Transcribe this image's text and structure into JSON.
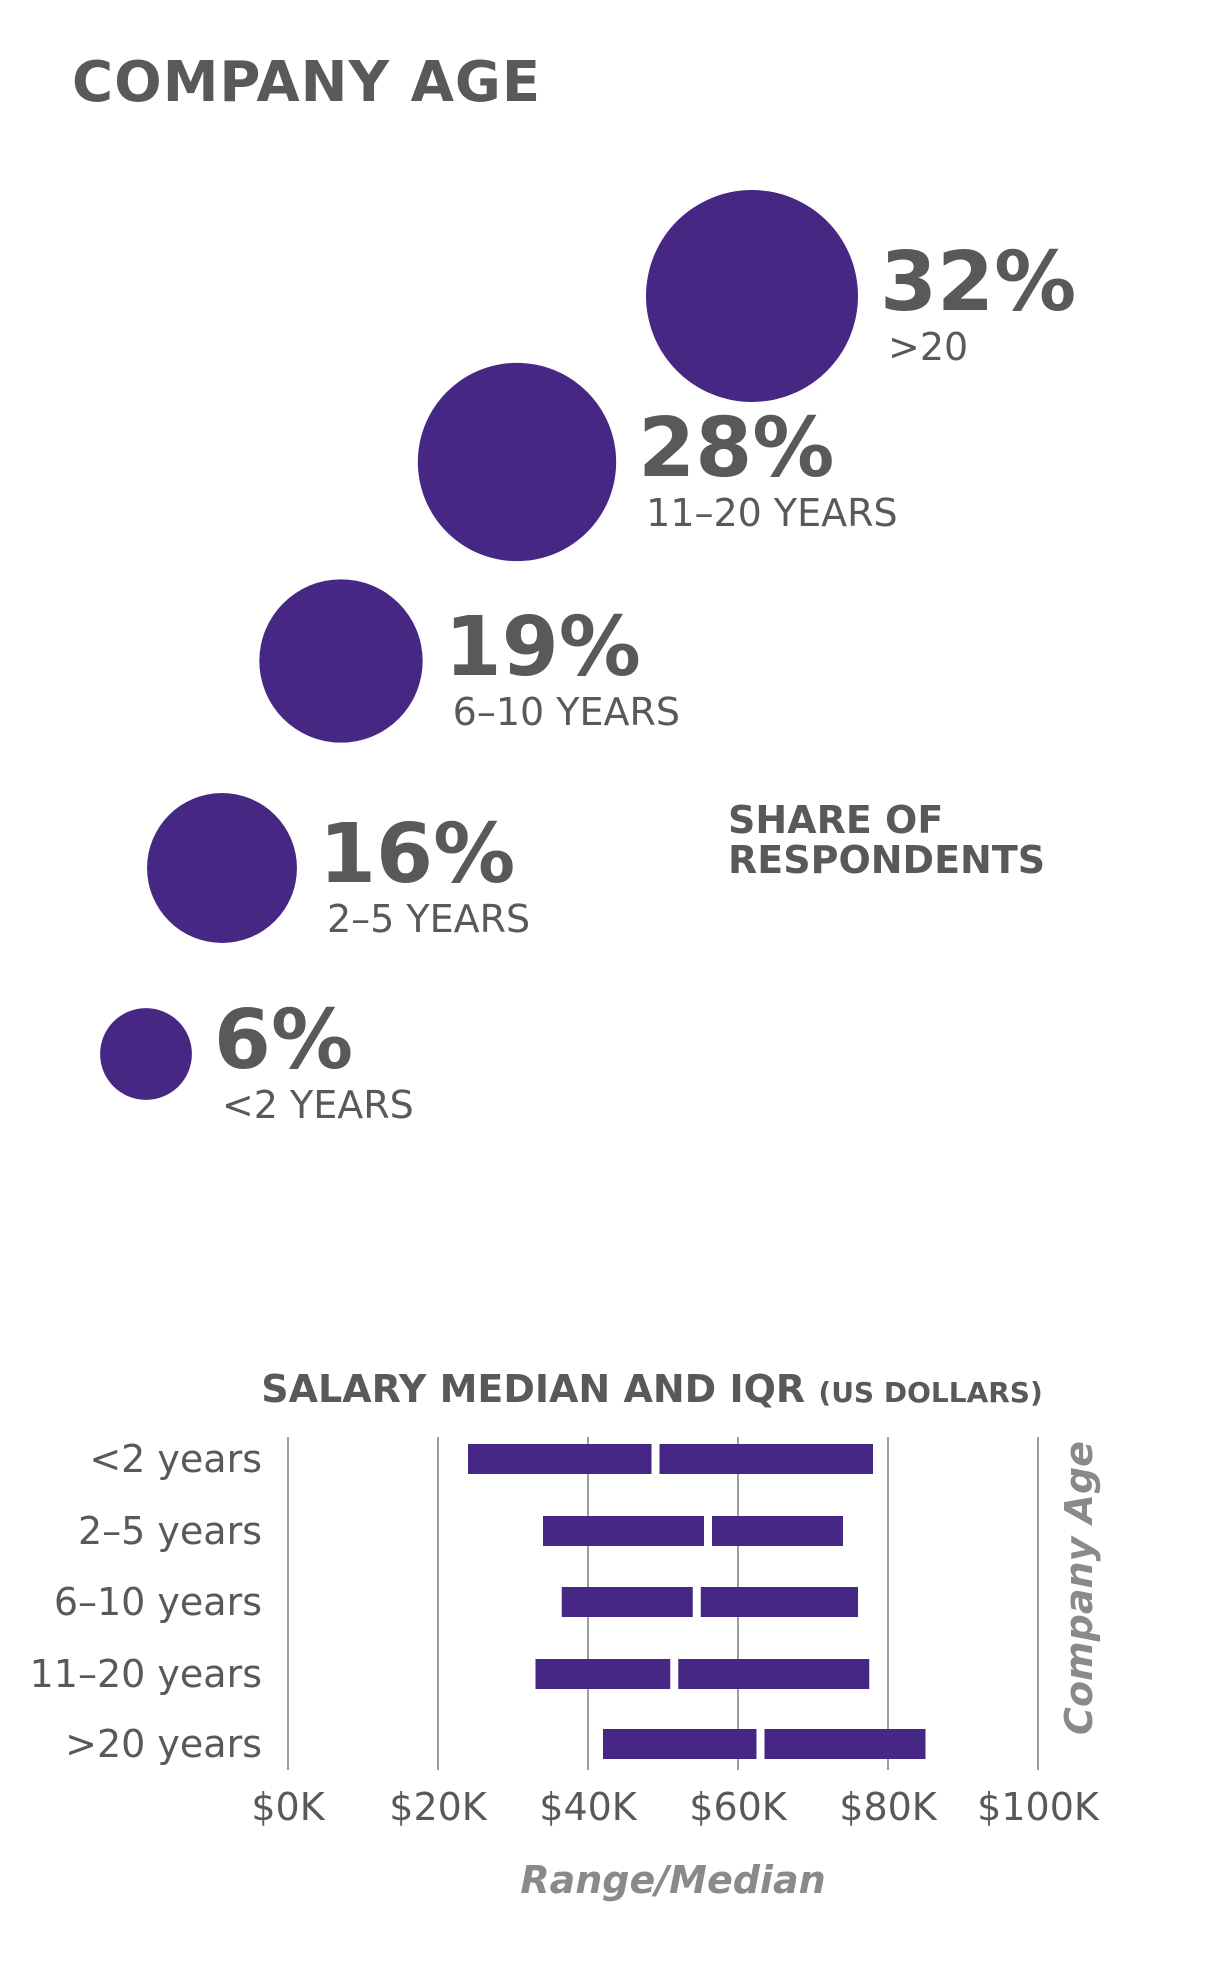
{
  "title": "COMPANY AGE",
  "share_label": [
    "SHARE OF",
    "RESPONDENTS"
  ],
  "colors": {
    "accent": "#462884",
    "text": "#58595b",
    "grid": "#9e9e9e"
  },
  "chart_data": [
    {
      "type": "bubble",
      "categories": [
        ">20",
        "11–20 YEARS",
        "6–10 YEARS",
        "2–5 YEARS",
        "<2 YEARS"
      ],
      "values": [
        32,
        28,
        19,
        16,
        6
      ],
      "value_labels": [
        "32%",
        "28%",
        "19%",
        "16%",
        "6%"
      ],
      "title": "",
      "annotation": "SHARE OF RESPONDENTS"
    },
    {
      "type": "range-bar",
      "title": "SALARY MEDIAN AND IQR",
      "subtitle": "(US DOLLARS)",
      "categories": [
        "<2 years",
        "2–5 years",
        "6–10 years",
        "11–20 years",
        ">20 years"
      ],
      "low": [
        24000,
        34000,
        36500,
        33000,
        42000
      ],
      "median": [
        49000,
        56000,
        54500,
        51500,
        63000
      ],
      "high": [
        78000,
        74000,
        76000,
        77500,
        85000
      ],
      "xlim": [
        0,
        100000
      ],
      "xticks": [
        0,
        20000,
        40000,
        60000,
        80000,
        100000
      ],
      "xtick_labels": [
        "$0K",
        "$20K",
        "$40K",
        "$60K",
        "$80K",
        "$100K"
      ],
      "xlabel": "Range/Median",
      "ylabel": "Company Age",
      "grid": true
    }
  ]
}
